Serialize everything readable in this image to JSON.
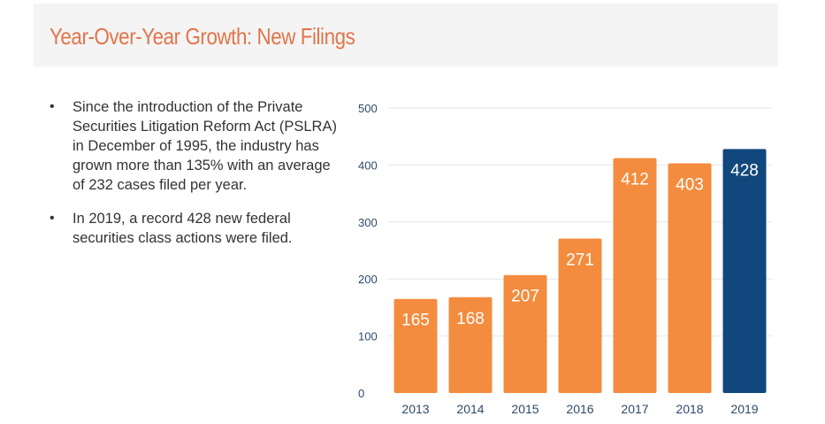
{
  "header": {
    "title": "Year-Over-Year Growth: New Filings"
  },
  "bullets": [
    "Since the introduction of the Private Securities Litigation Reform Act (PSLRA) in December of 1995, the industry has grown more than 135% with an average of 232 cases filed per year.",
    "In 2019, a record 428 new federal securities class actions were filed."
  ],
  "colors": {
    "title": "#e1754a",
    "bar": "#f38c3e",
    "highlight_bar": "#10477c",
    "grid": "#e6e6e6",
    "tick_label": "#2f4a6a"
  },
  "chart_data": {
    "type": "bar",
    "title": "",
    "xlabel": "",
    "ylabel": "",
    "categories": [
      "2013",
      "2014",
      "2015",
      "2016",
      "2017",
      "2018",
      "2019"
    ],
    "values": [
      165,
      168,
      207,
      271,
      412,
      403,
      428
    ],
    "data_labels": [
      "165",
      "168",
      "207",
      "271",
      "412",
      "403",
      "428"
    ],
    "highlight_category": "2019",
    "ylim": [
      0,
      500
    ],
    "yticks": [
      0,
      100,
      200,
      300,
      400,
      500
    ],
    "grid": true,
    "legend": "none"
  }
}
